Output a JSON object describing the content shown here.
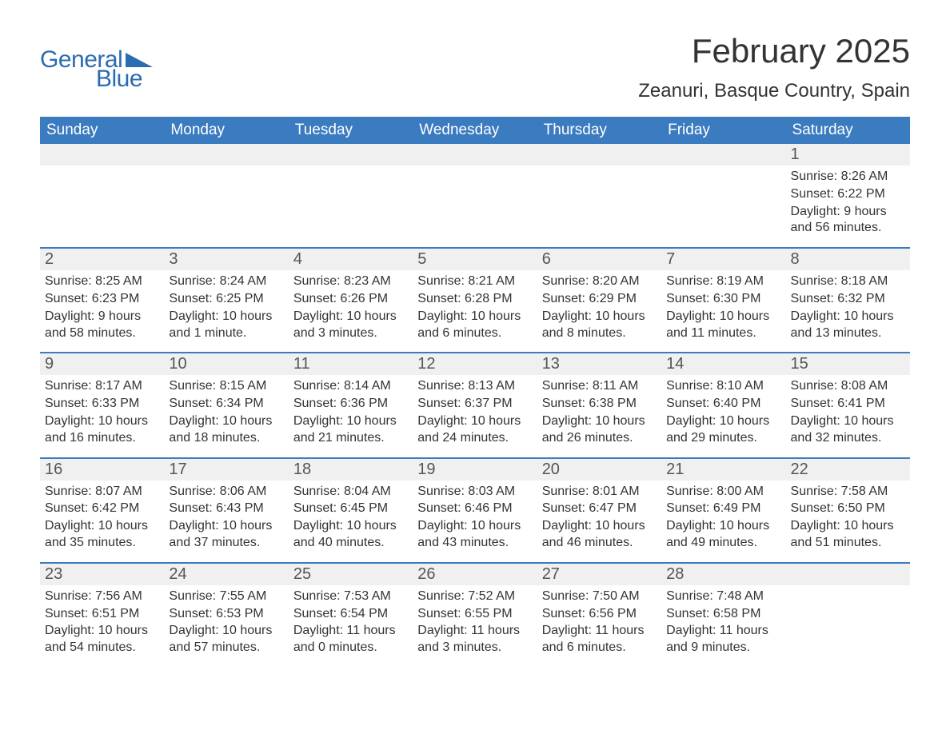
{
  "brand": {
    "word1": "General",
    "word2": "Blue",
    "text_color": "#2b6cb0",
    "triangle_color": "#2b6cb0"
  },
  "title": "February 2025",
  "location": "Zeanuri, Basque Country, Spain",
  "colors": {
    "header_bg": "#3b7bbf",
    "header_text": "#ffffff",
    "daynum_bg": "#f0f0f0",
    "daynum_text": "#555555",
    "week_border": "#3b7bbf",
    "body_text": "#333333",
    "page_bg": "#ffffff"
  },
  "fonts": {
    "title_size_pt": 32,
    "location_size_pt": 18,
    "dayheader_size_pt": 14,
    "daynum_size_pt": 15,
    "body_size_pt": 12
  },
  "day_headers": [
    "Sunday",
    "Monday",
    "Tuesday",
    "Wednesday",
    "Thursday",
    "Friday",
    "Saturday"
  ],
  "labels": {
    "sunrise": "Sunrise:",
    "sunset": "Sunset:",
    "daylight": "Daylight:"
  },
  "weeks": [
    [
      null,
      null,
      null,
      null,
      null,
      null,
      {
        "n": "1",
        "sunrise": "8:26 AM",
        "sunset": "6:22 PM",
        "daylight": "9 hours and 56 minutes."
      }
    ],
    [
      {
        "n": "2",
        "sunrise": "8:25 AM",
        "sunset": "6:23 PM",
        "daylight": "9 hours and 58 minutes."
      },
      {
        "n": "3",
        "sunrise": "8:24 AM",
        "sunset": "6:25 PM",
        "daylight": "10 hours and 1 minute."
      },
      {
        "n": "4",
        "sunrise": "8:23 AM",
        "sunset": "6:26 PM",
        "daylight": "10 hours and 3 minutes."
      },
      {
        "n": "5",
        "sunrise": "8:21 AM",
        "sunset": "6:28 PM",
        "daylight": "10 hours and 6 minutes."
      },
      {
        "n": "6",
        "sunrise": "8:20 AM",
        "sunset": "6:29 PM",
        "daylight": "10 hours and 8 minutes."
      },
      {
        "n": "7",
        "sunrise": "8:19 AM",
        "sunset": "6:30 PM",
        "daylight": "10 hours and 11 minutes."
      },
      {
        "n": "8",
        "sunrise": "8:18 AM",
        "sunset": "6:32 PM",
        "daylight": "10 hours and 13 minutes."
      }
    ],
    [
      {
        "n": "9",
        "sunrise": "8:17 AM",
        "sunset": "6:33 PM",
        "daylight": "10 hours and 16 minutes."
      },
      {
        "n": "10",
        "sunrise": "8:15 AM",
        "sunset": "6:34 PM",
        "daylight": "10 hours and 18 minutes."
      },
      {
        "n": "11",
        "sunrise": "8:14 AM",
        "sunset": "6:36 PM",
        "daylight": "10 hours and 21 minutes."
      },
      {
        "n": "12",
        "sunrise": "8:13 AM",
        "sunset": "6:37 PM",
        "daylight": "10 hours and 24 minutes."
      },
      {
        "n": "13",
        "sunrise": "8:11 AM",
        "sunset": "6:38 PM",
        "daylight": "10 hours and 26 minutes."
      },
      {
        "n": "14",
        "sunrise": "8:10 AM",
        "sunset": "6:40 PM",
        "daylight": "10 hours and 29 minutes."
      },
      {
        "n": "15",
        "sunrise": "8:08 AM",
        "sunset": "6:41 PM",
        "daylight": "10 hours and 32 minutes."
      }
    ],
    [
      {
        "n": "16",
        "sunrise": "8:07 AM",
        "sunset": "6:42 PM",
        "daylight": "10 hours and 35 minutes."
      },
      {
        "n": "17",
        "sunrise": "8:06 AM",
        "sunset": "6:43 PM",
        "daylight": "10 hours and 37 minutes."
      },
      {
        "n": "18",
        "sunrise": "8:04 AM",
        "sunset": "6:45 PM",
        "daylight": "10 hours and 40 minutes."
      },
      {
        "n": "19",
        "sunrise": "8:03 AM",
        "sunset": "6:46 PM",
        "daylight": "10 hours and 43 minutes."
      },
      {
        "n": "20",
        "sunrise": "8:01 AM",
        "sunset": "6:47 PM",
        "daylight": "10 hours and 46 minutes."
      },
      {
        "n": "21",
        "sunrise": "8:00 AM",
        "sunset": "6:49 PM",
        "daylight": "10 hours and 49 minutes."
      },
      {
        "n": "22",
        "sunrise": "7:58 AM",
        "sunset": "6:50 PM",
        "daylight": "10 hours and 51 minutes."
      }
    ],
    [
      {
        "n": "23",
        "sunrise": "7:56 AM",
        "sunset": "6:51 PM",
        "daylight": "10 hours and 54 minutes."
      },
      {
        "n": "24",
        "sunrise": "7:55 AM",
        "sunset": "6:53 PM",
        "daylight": "10 hours and 57 minutes."
      },
      {
        "n": "25",
        "sunrise": "7:53 AM",
        "sunset": "6:54 PM",
        "daylight": "11 hours and 0 minutes."
      },
      {
        "n": "26",
        "sunrise": "7:52 AM",
        "sunset": "6:55 PM",
        "daylight": "11 hours and 3 minutes."
      },
      {
        "n": "27",
        "sunrise": "7:50 AM",
        "sunset": "6:56 PM",
        "daylight": "11 hours and 6 minutes."
      },
      {
        "n": "28",
        "sunrise": "7:48 AM",
        "sunset": "6:58 PM",
        "daylight": "11 hours and 9 minutes."
      },
      null
    ]
  ]
}
